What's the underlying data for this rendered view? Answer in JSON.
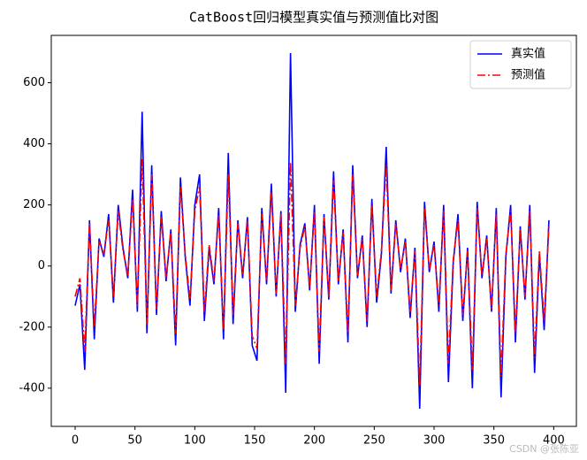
{
  "chart_data": {
    "type": "line",
    "title": "CatBoost回归模型真实值与预测值比对图",
    "watermark": "CSDN @张陈亚",
    "x": [
      0,
      4,
      8,
      12,
      16,
      20,
      24,
      28,
      32,
      36,
      40,
      44,
      48,
      52,
      56,
      60,
      64,
      68,
      72,
      76,
      80,
      84,
      88,
      92,
      96,
      100,
      104,
      108,
      112,
      116,
      120,
      124,
      128,
      132,
      136,
      140,
      144,
      148,
      152,
      156,
      160,
      164,
      168,
      172,
      176,
      180,
      184,
      188,
      192,
      196,
      200,
      204,
      208,
      212,
      216,
      220,
      224,
      228,
      232,
      236,
      240,
      244,
      248,
      252,
      256,
      260,
      264,
      268,
      272,
      276,
      280,
      284,
      288,
      292,
      296,
      300,
      304,
      308,
      312,
      316,
      320,
      324,
      328,
      332,
      336,
      340,
      344,
      348,
      352,
      356,
      360,
      364,
      368,
      372,
      376,
      380,
      384,
      388,
      392,
      396
    ],
    "series": [
      {
        "name": "真实值",
        "color": "#0000ff",
        "style": "solid",
        "values": [
          -130,
          -60,
          -340,
          150,
          -240,
          90,
          30,
          170,
          -120,
          200,
          60,
          -40,
          250,
          -150,
          505,
          -220,
          330,
          -160,
          180,
          -50,
          120,
          -260,
          290,
          30,
          -130,
          200,
          300,
          -180,
          60,
          -60,
          190,
          -240,
          370,
          -190,
          150,
          -40,
          160,
          -260,
          -310,
          190,
          -60,
          270,
          -100,
          180,
          -415,
          697,
          -150,
          70,
          140,
          -80,
          200,
          -320,
          170,
          -110,
          310,
          -60,
          120,
          -250,
          330,
          -40,
          100,
          -200,
          220,
          -120,
          40,
          390,
          -90,
          150,
          -20,
          90,
          -170,
          60,
          -467,
          210,
          -20,
          80,
          -150,
          200,
          -380,
          10,
          170,
          -180,
          60,
          -400,
          210,
          -40,
          100,
          -150,
          190,
          -430,
          30,
          200,
          -250,
          130,
          -110,
          200,
          -350,
          40,
          -210,
          150
        ]
      },
      {
        "name": "预测值",
        "color": "#ff0000",
        "style": "dashdot",
        "values": [
          -100,
          -40,
          -280,
          140,
          -200,
          80,
          40,
          150,
          -100,
          180,
          50,
          -30,
          220,
          -130,
          350,
          -190,
          300,
          -140,
          160,
          -40,
          110,
          -220,
          260,
          40,
          -110,
          180,
          260,
          -150,
          70,
          -50,
          170,
          -210,
          300,
          -160,
          140,
          -30,
          150,
          -230,
          -270,
          170,
          -50,
          240,
          -90,
          170,
          -320,
          340,
          -130,
          60,
          130,
          -70,
          180,
          -280,
          160,
          -100,
          280,
          -50,
          110,
          -220,
          300,
          -30,
          90,
          -180,
          200,
          -100,
          50,
          330,
          -80,
          140,
          -10,
          80,
          -150,
          50,
          -390,
          190,
          -10,
          70,
          -130,
          180,
          -320,
          20,
          150,
          -160,
          50,
          -340,
          190,
          -30,
          90,
          -140,
          170,
          -360,
          40,
          180,
          -220,
          120,
          -100,
          180,
          -300,
          50,
          -180,
          130
        ]
      }
    ],
    "xlim": [
      -19.95,
      418.95
    ],
    "xticks": [
      0,
      50,
      100,
      150,
      200,
      250,
      300,
      350,
      400
    ],
    "ylim": [
      -525,
      755
    ],
    "yticks": [
      -400,
      -200,
      0,
      200,
      400,
      600
    ],
    "legend": "upper right",
    "grid": false
  }
}
